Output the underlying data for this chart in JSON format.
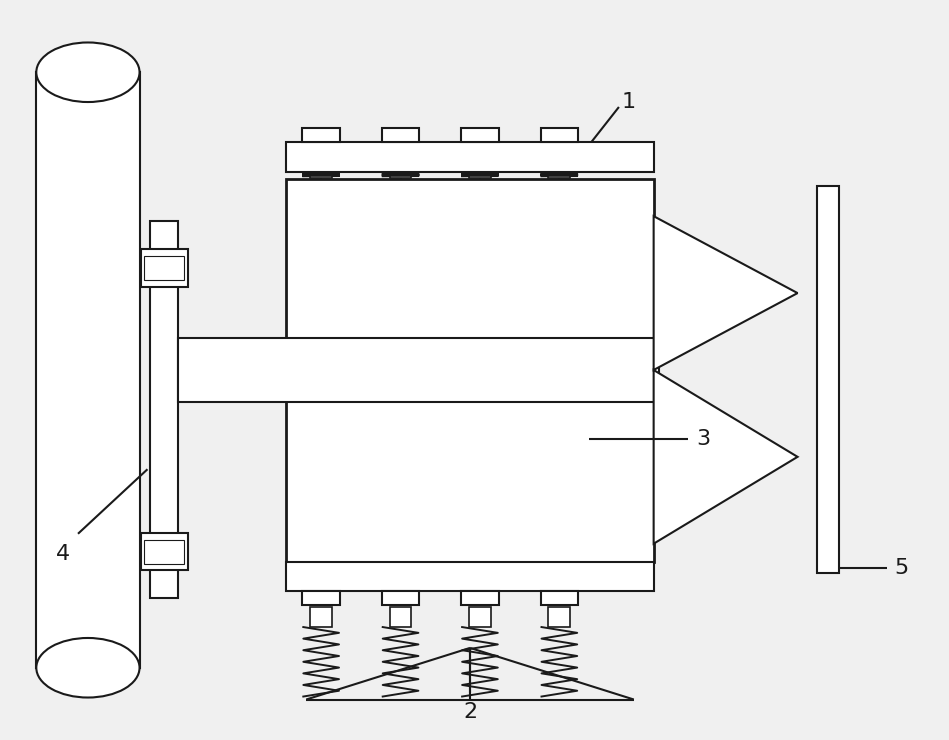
{
  "bg_color": "#f0f0f0",
  "line_color": "#1a1a1a",
  "lw": 1.5,
  "fig_width": 9.49,
  "fig_height": 7.4,
  "label_fontsize": 16
}
